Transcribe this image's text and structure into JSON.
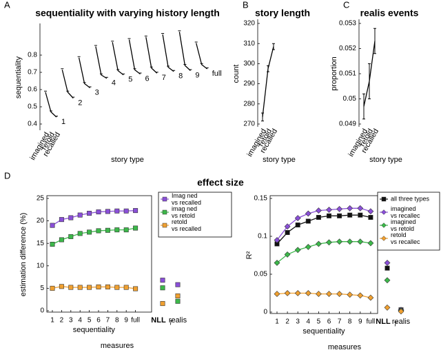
{
  "chart_data": [
    {
      "type": "line",
      "panel": "A",
      "title": "sequentiality with varying history length",
      "ylabel": "sequentiality",
      "xlabel": "story type",
      "categories": [
        "imagined",
        "retold",
        "recalled"
      ],
      "color": "#000000",
      "ylim": [
        0.38,
        0.96
      ],
      "yticks": [
        0.4,
        0.5,
        0.6,
        0.7,
        0.8
      ],
      "series": [
        {
          "name": "1",
          "values": [
            0.585,
            0.47,
            0.44
          ]
        },
        {
          "name": "2",
          "values": [
            0.715,
            0.585,
            0.55
          ]
        },
        {
          "name": "3",
          "values": [
            0.785,
            0.635,
            0.61
          ]
        },
        {
          "name": "4",
          "values": [
            0.85,
            0.685,
            0.665
          ]
        },
        {
          "name": "5",
          "values": [
            0.875,
            0.71,
            0.685
          ]
        },
        {
          "name": "6",
          "values": [
            0.89,
            0.715,
            0.69
          ]
        },
        {
          "name": "7",
          "values": [
            0.905,
            0.725,
            0.695
          ]
        },
        {
          "name": "8",
          "values": [
            0.92,
            0.73,
            0.705
          ]
        },
        {
          "name": "9",
          "values": [
            0.935,
            0.74,
            0.71
          ]
        },
        {
          "name": "full",
          "values": [
            0.87,
            0.745,
            0.72
          ]
        }
      ]
    },
    {
      "type": "line",
      "panel": "B",
      "title": "story length",
      "ylabel": "count",
      "xlabel": "story type",
      "categories": [
        "imagined",
        "retold",
        "recalled"
      ],
      "color": "#000000",
      "ylim": [
        270,
        320
      ],
      "yticks": [
        270,
        280,
        290,
        300,
        310,
        320
      ],
      "series": [
        {
          "values": [
            273.5,
            297.5,
            308.5
          ],
          "errors": [
            2,
            1.5,
            1.5
          ]
        }
      ]
    },
    {
      "type": "line",
      "panel": "C",
      "title": "realis events",
      "ylabel": "proportion",
      "xlabel": "story type",
      "categories": [
        "imagined",
        "retold",
        "recalled"
      ],
      "color": "#000000",
      "ylim": [
        0.049,
        0.053
      ],
      "yticks": [
        0.049,
        0.05,
        0.051,
        0.052,
        0.053
      ],
      "series": [
        {
          "values": [
            0.0497,
            0.0507,
            0.0523
          ],
          "errors": [
            0.0005,
            0.0007,
            0.0005
          ]
        }
      ]
    },
    {
      "type": "line",
      "panel": "D",
      "suptitle": "effect size",
      "ylabel": "estimation difference (%)",
      "xlabel": "measures",
      "group_labels": [
        "sequentiality",
        "NLL",
        "realis"
      ],
      "subscript": "T",
      "categories": [
        "1",
        "2",
        "3",
        "4",
        "5",
        "6",
        "7",
        "8",
        "9",
        "full",
        null,
        null
      ],
      "ylim": [
        0,
        25
      ],
      "yticks": [
        0,
        5,
        10,
        15,
        20,
        25
      ],
      "series": [
        {
          "name": "Imag ned vs recalled",
          "color": "#8a4fd8",
          "marker": "square",
          "values": [
            19,
            20.3,
            20.7,
            21.3,
            21.7,
            22,
            22.1,
            22.2,
            22.2,
            22.3,
            6.8,
            5.8
          ]
        },
        {
          "name": "imag ned vs retold",
          "color": "#3cb84a",
          "marker": "square",
          "values": [
            14.8,
            15.8,
            16.5,
            17.2,
            17.5,
            17.8,
            17.9,
            18,
            18,
            18.4,
            5.1,
            2.1
          ]
        },
        {
          "name": "retold vs recalled",
          "color": "#f0a030",
          "marker": "square",
          "values": [
            5,
            5.4,
            5.2,
            5.2,
            5.2,
            5.3,
            5.3,
            5.2,
            5.2,
            4.9,
            1.6,
            3.3
          ]
        }
      ]
    },
    {
      "type": "line",
      "ylabel": "R²",
      "xlabel": "measures",
      "group_labels": [
        "sequentiality",
        "NLL",
        "realis"
      ],
      "subscript": "T",
      "categories": [
        "1",
        "2",
        "3",
        "4",
        "5",
        "6",
        "7",
        "8",
        "9",
        "full",
        null,
        null
      ],
      "ylim": [
        0,
        0.15
      ],
      "yticks": [
        0,
        0.05,
        0.1,
        0.15
      ],
      "series": [
        {
          "name": "all three types",
          "color": "#111111",
          "marker": "square",
          "values": [
            0.09,
            0.105,
            0.115,
            0.12,
            0.125,
            0.127,
            0.127,
            0.128,
            0.128,
            0.125,
            0.058,
            0.003
          ]
        },
        {
          "name": "imagined vs recallec",
          "color": "#8a4fd8",
          "marker": "diamond",
          "values": [
            0.095,
            0.113,
            0.124,
            0.13,
            0.134,
            0.135,
            0.136,
            0.137,
            0.137,
            0.133,
            0.065,
            0.003
          ]
        },
        {
          "name": "imagined vs retold",
          "color": "#3cb84a",
          "marker": "diamond",
          "values": [
            0.065,
            0.076,
            0.082,
            0.086,
            0.09,
            0.092,
            0.093,
            0.093,
            0.093,
            0.091,
            0.042,
            0.002
          ]
        },
        {
          "name": "retold vs recallec",
          "color": "#f0a030",
          "marker": "diamond",
          "values": [
            0.024,
            0.025,
            0.025,
            0.025,
            0.024,
            0.024,
            0.024,
            0.023,
            0.022,
            0.019,
            0.006,
            0.001
          ]
        }
      ]
    }
  ]
}
